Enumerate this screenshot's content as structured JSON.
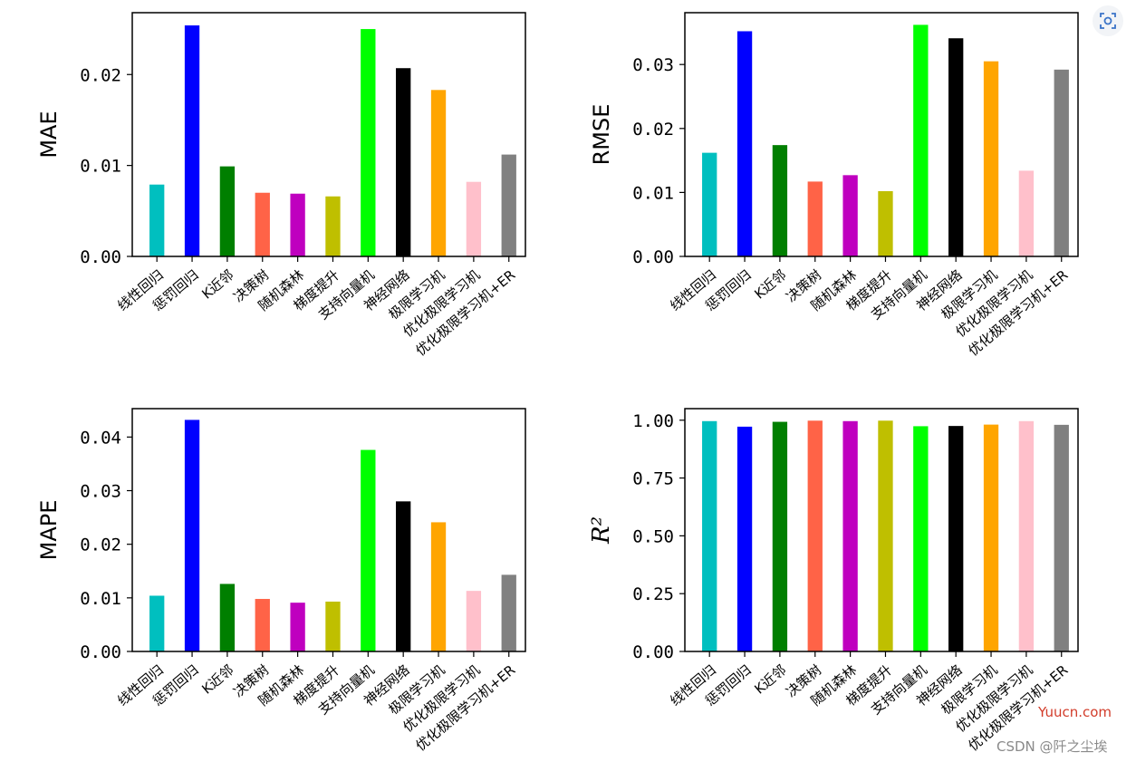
{
  "chart_data": [
    {
      "type": "bar",
      "ylabel": "MAE",
      "ylim": [
        0,
        0.0268
      ],
      "yticks": [
        "0.00",
        "0.01",
        "0.02"
      ],
      "tick_values": [
        0,
        0.01,
        0.02
      ],
      "categories": [
        "线性回归",
        "惩罚回归",
        "K近邻",
        "决策树",
        "随机森林",
        "梯度提升",
        "支持向量机",
        "神经网络",
        "极限学习机",
        "优化极限学习机",
        "优化极限学习机+ER"
      ],
      "values": [
        0.0079,
        0.0254,
        0.0099,
        0.007,
        0.0069,
        0.0066,
        0.025,
        0.0207,
        0.0183,
        0.0082,
        0.0112
      ],
      "colors": [
        "#00bfbf",
        "#0000ff",
        "#007f00",
        "#ff6347",
        "#bf00bf",
        "#bfbf00",
        "#00ff00",
        "#000000",
        "#ffa500",
        "#ffc0cb",
        "#808080"
      ]
    },
    {
      "type": "bar",
      "ylabel": "RMSE",
      "ylim": [
        0,
        0.0381
      ],
      "yticks": [
        "0.00",
        "0.01",
        "0.02",
        "0.03"
      ],
      "tick_values": [
        0,
        0.01,
        0.02,
        0.03
      ],
      "categories": [
        "线性回归",
        "惩罚回归",
        "K近邻",
        "决策树",
        "随机森林",
        "梯度提升",
        "支持向量机",
        "神经网络",
        "极限学习机",
        "优化极限学习机",
        "优化极限学习机+ER"
      ],
      "values": [
        0.0162,
        0.0352,
        0.0174,
        0.0117,
        0.0127,
        0.0102,
        0.0362,
        0.0341,
        0.0305,
        0.0134,
        0.0292
      ],
      "colors": [
        "#00bfbf",
        "#0000ff",
        "#007f00",
        "#ff6347",
        "#bf00bf",
        "#bfbf00",
        "#00ff00",
        "#000000",
        "#ffa500",
        "#ffc0cb",
        "#808080"
      ]
    },
    {
      "type": "bar",
      "ylabel": "MAPE",
      "ylim": [
        0,
        0.0453
      ],
      "yticks": [
        "0.00",
        "0.01",
        "0.02",
        "0.03",
        "0.04"
      ],
      "tick_values": [
        0,
        0.01,
        0.02,
        0.03,
        0.04
      ],
      "categories": [
        "线性回归",
        "惩罚回归",
        "K近邻",
        "决策树",
        "随机森林",
        "梯度提升",
        "支持向量机",
        "神经网络",
        "极限学习机",
        "优化极限学习机",
        "优化极限学习机+ER"
      ],
      "values": [
        0.0104,
        0.0432,
        0.0126,
        0.0098,
        0.0091,
        0.0093,
        0.0376,
        0.028,
        0.0241,
        0.0113,
        0.0143
      ],
      "colors": [
        "#00bfbf",
        "#0000ff",
        "#007f00",
        "#ff6347",
        "#bf00bf",
        "#bfbf00",
        "#00ff00",
        "#000000",
        "#ffa500",
        "#ffc0cb",
        "#808080"
      ]
    },
    {
      "type": "bar",
      "ylabel": "R²",
      "ylim": [
        0,
        1.05
      ],
      "yticks": [
        "0.00",
        "0.25",
        "0.50",
        "0.75",
        "1.00"
      ],
      "tick_values": [
        0,
        0.25,
        0.5,
        0.75,
        1.0
      ],
      "categories": [
        "线性回归",
        "惩罚回归",
        "K近邻",
        "决策树",
        "随机森林",
        "梯度提升",
        "支持向量机",
        "神经网络",
        "极限学习机",
        "优化极限学习机",
        "优化极限学习机+ER"
      ],
      "values": [
        0.996,
        0.972,
        0.993,
        0.998,
        0.996,
        0.998,
        0.974,
        0.975,
        0.981,
        0.996,
        0.98
      ],
      "colors": [
        "#00bfbf",
        "#0000ff",
        "#007f00",
        "#ff6347",
        "#bf00bf",
        "#bfbf00",
        "#00ff00",
        "#000000",
        "#ffa500",
        "#ffc0cb",
        "#808080"
      ]
    }
  ],
  "watermark": {
    "site": "Yuucn.com",
    "author": "CSDN @阡之尘埃"
  },
  "toolbar": {
    "lens_icon": "visual-search-icon"
  }
}
